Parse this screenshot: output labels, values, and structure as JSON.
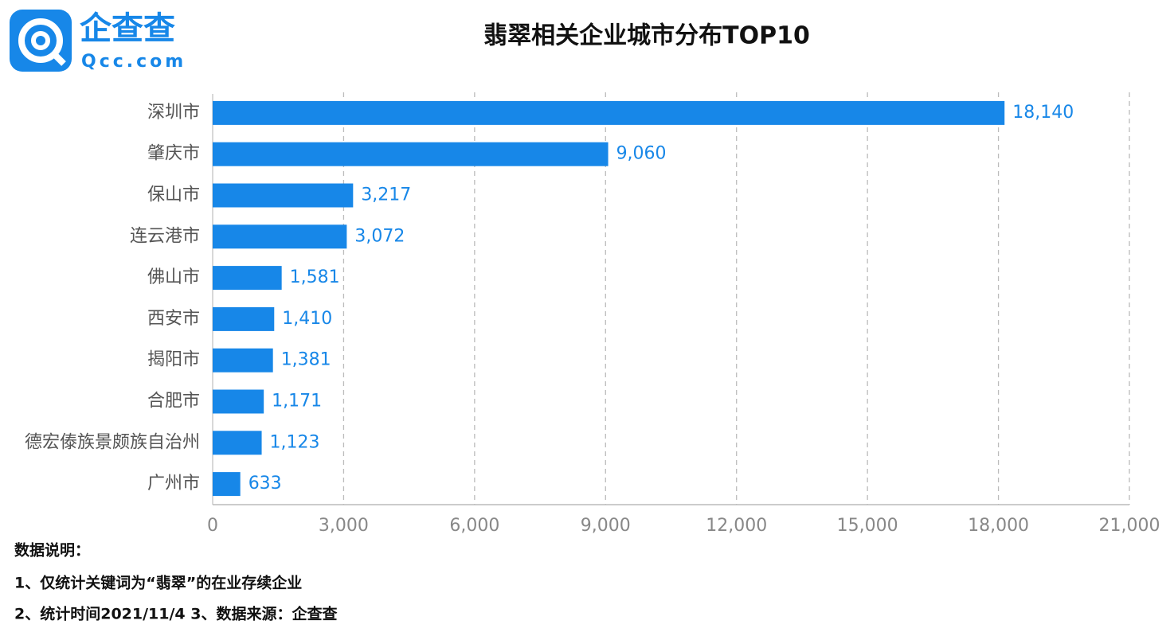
{
  "logo": {
    "name": "企查查",
    "domain": "Qcc.com"
  },
  "chart_data": {
    "type": "bar",
    "orientation": "horizontal",
    "title": "翡翠相关企业城市分布TOP10",
    "categories": [
      "深圳市",
      "肇庆市",
      "保山市",
      "连云港市",
      "佛山市",
      "西安市",
      "揭阳市",
      "合肥市",
      "德宏傣族景颇族自治州",
      "广州市"
    ],
    "values": [
      18140,
      9060,
      3217,
      3072,
      1581,
      1410,
      1381,
      1171,
      1123,
      633
    ],
    "value_labels": [
      "18,140",
      "9,060",
      "3,217",
      "3,072",
      "1,581",
      "1,410",
      "1,381",
      "1,171",
      "1,123",
      "633"
    ],
    "color": "#1787e8",
    "xlim": [
      0,
      21000
    ],
    "xticks": [
      0,
      {
        "value": 3000,
        "label": "3,000"
      },
      {
        "value": 6000,
        "label": "6,000"
      },
      {
        "value": 9000,
        "label": "9,000"
      },
      {
        "value": 12000,
        "label": "12,000"
      },
      {
        "value": 15000,
        "label": "15,000"
      },
      {
        "value": 18000,
        "label": "18,000"
      },
      {
        "value": 21000,
        "label": "21,000"
      }
    ],
    "grid": true
  },
  "notes": [
    "数据说明：",
    "1、仅统计关键词为“翡翠”的在业存续企业",
    "2、统计时间2021/11/4  3、数据来源：企查查"
  ]
}
